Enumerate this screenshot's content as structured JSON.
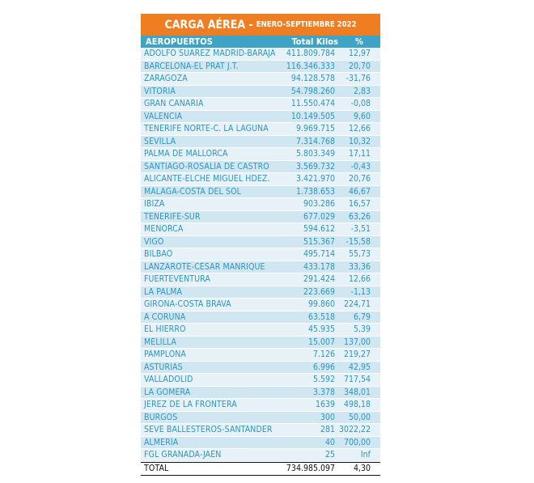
{
  "title": {
    "main": "CARGA AÉREA -",
    "sub": "ENERO-SEPTIEMBRE 2022"
  },
  "headers": {
    "airports": "AEROPUERTOS",
    "kilos": "Total Kilos",
    "pct": "%"
  },
  "rows": [
    {
      "name": "ADOLFO SUÁREZ MADRID-BARAJAS",
      "kilos": "411.809.784",
      "pct": "12,97"
    },
    {
      "name": "BARCELONA-EL PRAT J.T.",
      "kilos": "116.346.333",
      "pct": "20,70"
    },
    {
      "name": "ZARAGOZA",
      "kilos": "94.128.578",
      "pct": "-31,76"
    },
    {
      "name": "VITORIA",
      "kilos": "54.798.260",
      "pct": "2,83"
    },
    {
      "name": "GRAN CANARIA",
      "kilos": "11.550.474",
      "pct": "-0,08"
    },
    {
      "name": "VALENCIA",
      "kilos": "10.149.505",
      "pct": "9,60"
    },
    {
      "name": "TENERIFE NORTE-C. LA LAGUNA",
      "kilos": "9.969.715",
      "pct": "12,66"
    },
    {
      "name": "SEVILLA",
      "kilos": "7.314.768",
      "pct": "10,32"
    },
    {
      "name": "PALMA DE MALLORCA",
      "kilos": "5.803.349",
      "pct": "17,11"
    },
    {
      "name": "SANTIAGO-ROSALÍA DE CASTRO",
      "kilos": "3.569.732",
      "pct": "-0,43"
    },
    {
      "name": "ALICANTE-ELCHE MIGUEL HDEZ.",
      "kilos": "3.421.970",
      "pct": "20,76"
    },
    {
      "name": "MÁLAGA-COSTA DEL SOL",
      "kilos": "1.738.653",
      "pct": "46,67"
    },
    {
      "name": "IBIZA",
      "kilos": "903.286",
      "pct": "16,57"
    },
    {
      "name": "TENERIFE-SUR",
      "kilos": "677.029",
      "pct": "63,26"
    },
    {
      "name": "MENORCA",
      "kilos": "594.612",
      "pct": "-3,51"
    },
    {
      "name": "VIGO",
      "kilos": "515.367",
      "pct": "-15,58"
    },
    {
      "name": "BILBAO",
      "kilos": "495.714",
      "pct": "55,73"
    },
    {
      "name": "LANZAROTE-CÉSAR MANRIQUE",
      "kilos": "433.178",
      "pct": "33,36"
    },
    {
      "name": "FUERTEVENTURA",
      "kilos": "291.424",
      "pct": "12,66"
    },
    {
      "name": "LA PALMA",
      "kilos": "223.669",
      "pct": "-1,13"
    },
    {
      "name": "GIRONA-COSTA BRAVA",
      "kilos": "99.860",
      "pct": "224,71"
    },
    {
      "name": "A CORUÑA",
      "kilos": "63.518",
      "pct": "6,79"
    },
    {
      "name": "EL HIERRO",
      "kilos": "45.935",
      "pct": "5,39"
    },
    {
      "name": "MELILLA",
      "kilos": "15.007",
      "pct": "137,00"
    },
    {
      "name": "PAMPLONA",
      "kilos": "7.126",
      "pct": "219,27"
    },
    {
      "name": "ASTURIAS",
      "kilos": "6.996",
      "pct": "42,95"
    },
    {
      "name": "VALLADOLID",
      "kilos": "5.592",
      "pct": "717,54"
    },
    {
      "name": "LA GOMERA",
      "kilos": "3.378",
      "pct": "348,01"
    },
    {
      "name": "JEREZ DE LA FRONTERA",
      "kilos": "1639",
      "pct": "498,18"
    },
    {
      "name": "BURGOS",
      "kilos": "300",
      "pct": "50,00"
    },
    {
      "name": "SEVE BALLESTEROS-SANTANDER",
      "kilos": "281",
      "pct": "3022,22"
    },
    {
      "name": "ALMERÍA",
      "kilos": "40",
      "pct": "700,00"
    },
    {
      "name": "FGL GRANADA-JAÉN",
      "kilos": "25",
      "pct": "Inf"
    }
  ],
  "total": {
    "label": "TOTAL",
    "kilos": "734.985.097",
    "pct": "4,30"
  },
  "colors": {
    "title_bg": "#ef7d22",
    "header_bg": "#3ea3c4",
    "row_light": "#e6f2f8",
    "row_dark": "#d0e7f1",
    "row_text": "#2c95bd"
  }
}
